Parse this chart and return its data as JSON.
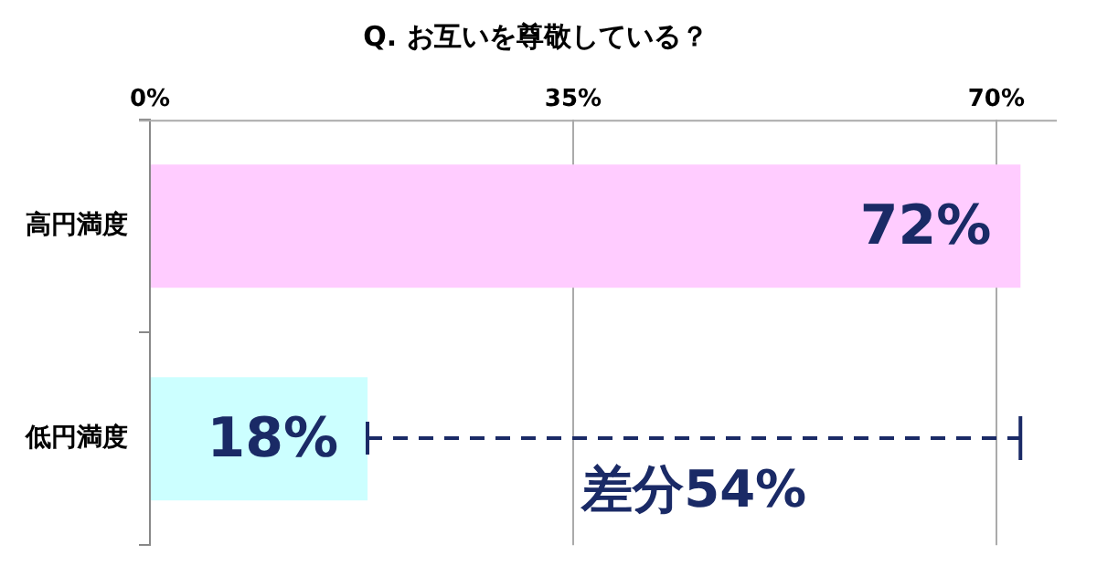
{
  "chart_data": {
    "type": "bar",
    "orientation": "horizontal",
    "title": "Q. お互いを尊敬している？",
    "categories": [
      "高円満度",
      "低円満度"
    ],
    "values": [
      72,
      18
    ],
    "colors": [
      "#ffccff",
      "#ccffff"
    ],
    "value_labels": [
      "72%",
      "18%"
    ],
    "xlim": [
      0,
      75
    ],
    "xticks": [
      {
        "value": 0,
        "label": "0%"
      },
      {
        "value": 35,
        "label": "35%"
      },
      {
        "value": 70,
        "label": "70%"
      }
    ],
    "grid": "x",
    "legend": false,
    "annotations": [
      "差分54%"
    ]
  }
}
